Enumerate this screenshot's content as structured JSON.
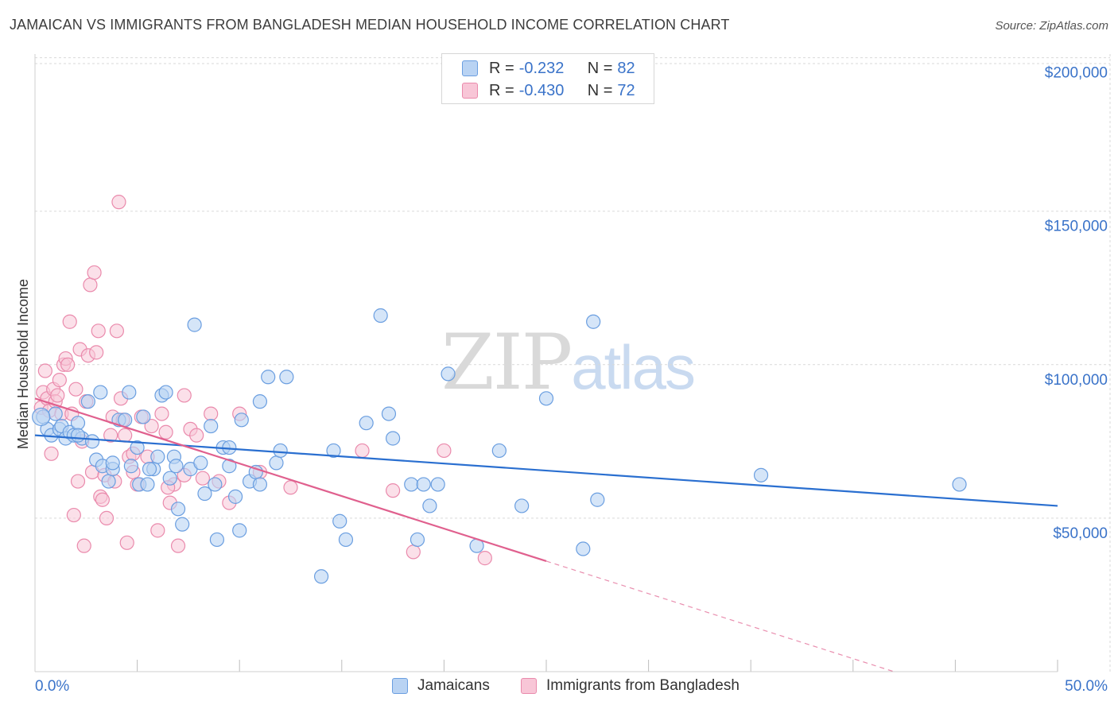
{
  "header": {
    "title": "JAMAICAN VS IMMIGRANTS FROM BANGLADESH MEDIAN HOUSEHOLD INCOME CORRELATION CHART",
    "source": "Source: ZipAtlas.com"
  },
  "watermark": {
    "zip": "ZIP",
    "atlas": "atlas"
  },
  "legend": {
    "rows": [
      {
        "r_label": "R =",
        "r_value": "-0.232",
        "n_label": "N =",
        "n_value": "82"
      },
      {
        "r_label": "R =",
        "r_value": "-0.430",
        "n_label": "N =",
        "n_value": "72"
      }
    ]
  },
  "bottom_legend": {
    "series1": "Jamaicans",
    "series2": "Immigrants from Bangladesh"
  },
  "colors": {
    "blue_fill": "#b9d3f3",
    "blue_stroke": "#6a9ee0",
    "blue_line": "#2a6fd0",
    "pink_fill": "#f8c6d7",
    "pink_stroke": "#ea8aac",
    "pink_line": "#e0608e",
    "grid": "#d9d9d9",
    "tick_text": "#3a73c9"
  },
  "chart_data": {
    "type": "scatter",
    "title": "JAMAICAN VS IMMIGRANTS FROM BANGLADESH MEDIAN HOUSEHOLD INCOME CORRELATION CHART",
    "xlabel": "",
    "ylabel": "Median Household Income",
    "xlim": [
      0,
      50
    ],
    "ylim": [
      0,
      210000
    ],
    "x_tick_labels": [
      "0.0%",
      "50.0%"
    ],
    "y_ticks": [
      50000,
      100000,
      150000,
      200000
    ],
    "y_tick_labels": [
      "$50,000",
      "$100,000",
      "$150,000",
      "$200,000"
    ],
    "grid": true,
    "legend_position": "top-center",
    "series": [
      {
        "name": "Jamaicans",
        "R": -0.232,
        "N": 82,
        "trend": {
          "x": [
            0,
            50
          ],
          "y": [
            77000,
            54000
          ]
        },
        "points": [
          [
            0.4,
            83000
          ],
          [
            0.6,
            79000
          ],
          [
            0.8,
            77000
          ],
          [
            1.0,
            84000
          ],
          [
            1.2,
            79000
          ],
          [
            1.3,
            80000
          ],
          [
            1.5,
            76000
          ],
          [
            1.7,
            78000
          ],
          [
            1.9,
            77000
          ],
          [
            2.1,
            81000
          ],
          [
            2.3,
            76000
          ],
          [
            2.6,
            88000
          ],
          [
            2.8,
            75000
          ],
          [
            3.0,
            69000
          ],
          [
            3.2,
            91000
          ],
          [
            3.3,
            67000
          ],
          [
            3.6,
            62000
          ],
          [
            3.8,
            66000
          ],
          [
            4.1,
            82000
          ],
          [
            4.4,
            82000
          ],
          [
            4.6,
            91000
          ],
          [
            4.7,
            67000
          ],
          [
            5.0,
            73000
          ],
          [
            5.1,
            61000
          ],
          [
            5.3,
            83000
          ],
          [
            5.5,
            61000
          ],
          [
            5.8,
            66000
          ],
          [
            6.0,
            70000
          ],
          [
            6.2,
            90000
          ],
          [
            6.4,
            91000
          ],
          [
            6.6,
            63000
          ],
          [
            6.8,
            70000
          ],
          [
            7.0,
            53000
          ],
          [
            7.2,
            48000
          ],
          [
            7.6,
            66000
          ],
          [
            7.8,
            113000
          ],
          [
            8.1,
            68000
          ],
          [
            8.3,
            58000
          ],
          [
            8.6,
            80000
          ],
          [
            8.8,
            61000
          ],
          [
            8.9,
            43000
          ],
          [
            9.2,
            73000
          ],
          [
            9.5,
            73000
          ],
          [
            9.8,
            57000
          ],
          [
            10.0,
            46000
          ],
          [
            10.1,
            82000
          ],
          [
            10.5,
            62000
          ],
          [
            10.8,
            65000
          ],
          [
            11.0,
            88000
          ],
          [
            11.4,
            96000
          ],
          [
            11.8,
            68000
          ],
          [
            12.0,
            72000
          ],
          [
            12.3,
            96000
          ],
          [
            14.6,
            72000
          ],
          [
            14.9,
            49000
          ],
          [
            15.2,
            43000
          ],
          [
            16.2,
            81000
          ],
          [
            16.9,
            116000
          ],
          [
            17.3,
            84000
          ],
          [
            17.5,
            76000
          ],
          [
            18.4,
            61000
          ],
          [
            18.7,
            43000
          ],
          [
            19.0,
            61000
          ],
          [
            19.3,
            54000
          ],
          [
            19.7,
            61000
          ],
          [
            20.2,
            97000
          ],
          [
            21.6,
            41000
          ],
          [
            22.7,
            72000
          ],
          [
            23.8,
            54000
          ],
          [
            25.0,
            89000
          ],
          [
            26.8,
            40000
          ],
          [
            27.3,
            114000
          ],
          [
            27.5,
            56000
          ],
          [
            35.5,
            64000
          ],
          [
            45.2,
            61000
          ],
          [
            11.0,
            61000
          ],
          [
            9.5,
            67000
          ],
          [
            6.9,
            67000
          ],
          [
            3.8,
            68000
          ],
          [
            2.1,
            77000
          ],
          [
            14.0,
            31000
          ],
          [
            5.6,
            66000
          ]
        ]
      },
      {
        "name": "Immigrants from Bangladesh",
        "R": -0.43,
        "N": 72,
        "trend": {
          "x": [
            0,
            25
          ],
          "y": [
            89000,
            36000
          ],
          "dashed_to": {
            "x": 42,
            "y": 0
          }
        },
        "points": [
          [
            0.3,
            86000
          ],
          [
            0.4,
            91000
          ],
          [
            0.5,
            98000
          ],
          [
            0.6,
            89000
          ],
          [
            0.7,
            85000
          ],
          [
            0.8,
            71000
          ],
          [
            0.9,
            92000
          ],
          [
            1.0,
            88000
          ],
          [
            1.1,
            90000
          ],
          [
            1.2,
            95000
          ],
          [
            1.3,
            84000
          ],
          [
            1.4,
            100000
          ],
          [
            1.5,
            102000
          ],
          [
            1.6,
            100000
          ],
          [
            1.7,
            114000
          ],
          [
            1.8,
            84000
          ],
          [
            1.9,
            51000
          ],
          [
            2.0,
            92000
          ],
          [
            2.1,
            62000
          ],
          [
            2.2,
            105000
          ],
          [
            2.3,
            75000
          ],
          [
            2.4,
            41000
          ],
          [
            2.5,
            88000
          ],
          [
            2.6,
            103000
          ],
          [
            2.7,
            126000
          ],
          [
            2.8,
            65000
          ],
          [
            2.9,
            130000
          ],
          [
            3.0,
            104000
          ],
          [
            3.1,
            111000
          ],
          [
            3.2,
            57000
          ],
          [
            3.3,
            56000
          ],
          [
            3.4,
            64000
          ],
          [
            3.5,
            50000
          ],
          [
            3.7,
            77000
          ],
          [
            3.8,
            83000
          ],
          [
            3.9,
            62000
          ],
          [
            4.0,
            111000
          ],
          [
            4.1,
            153000
          ],
          [
            4.2,
            89000
          ],
          [
            4.3,
            82000
          ],
          [
            4.4,
            77000
          ],
          [
            4.5,
            42000
          ],
          [
            4.6,
            70000
          ],
          [
            4.8,
            65000
          ],
          [
            5.0,
            61000
          ],
          [
            5.2,
            83000
          ],
          [
            5.5,
            70000
          ],
          [
            5.7,
            80000
          ],
          [
            6.0,
            46000
          ],
          [
            6.2,
            84000
          ],
          [
            6.4,
            78000
          ],
          [
            6.6,
            55000
          ],
          [
            6.8,
            61000
          ],
          [
            7.0,
            41000
          ],
          [
            7.3,
            90000
          ],
          [
            7.6,
            79000
          ],
          [
            7.9,
            77000
          ],
          [
            8.2,
            63000
          ],
          [
            8.6,
            84000
          ],
          [
            9.0,
            62000
          ],
          [
            9.5,
            55000
          ],
          [
            10.0,
            84000
          ],
          [
            11.0,
            65000
          ],
          [
            16.0,
            72000
          ],
          [
            17.5,
            59000
          ],
          [
            18.5,
            39000
          ],
          [
            20.0,
            72000
          ],
          [
            22.0,
            37000
          ],
          [
            12.5,
            60000
          ],
          [
            6.5,
            60000
          ],
          [
            7.3,
            64000
          ],
          [
            4.8,
            71000
          ]
        ]
      }
    ]
  }
}
